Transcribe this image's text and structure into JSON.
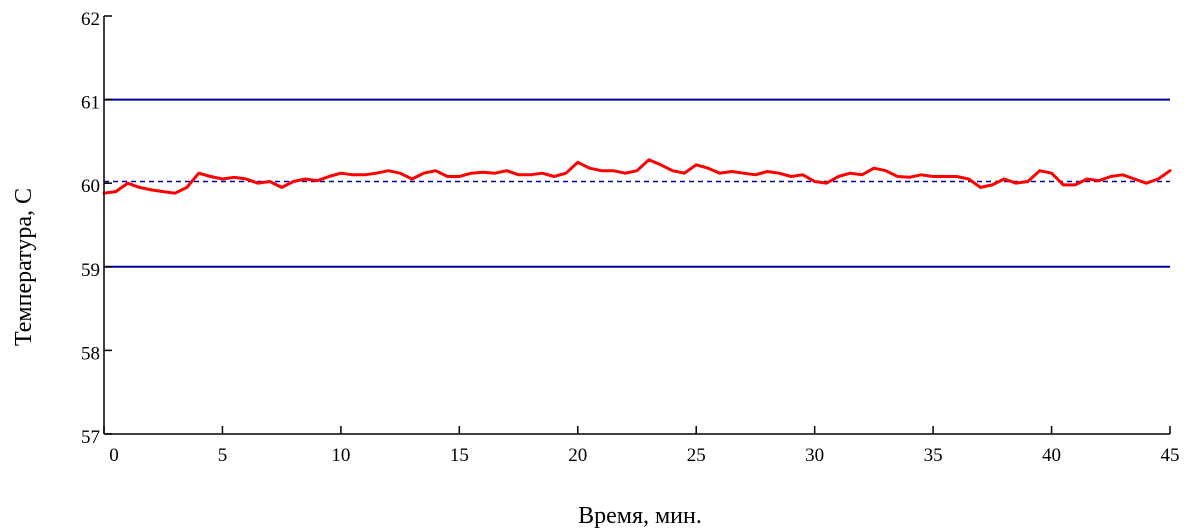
{
  "chart_data": {
    "type": "line",
    "xlabel": "Время, мин.",
    "ylabel": "Температура, С",
    "xlim": [
      0,
      45
    ],
    "ylim": [
      57,
      62
    ],
    "x_ticks": [
      0,
      5,
      10,
      15,
      20,
      25,
      30,
      35,
      40,
      45
    ],
    "y_ticks": [
      57,
      58,
      59,
      60,
      61,
      62
    ],
    "grid": false,
    "reference_lines": [
      {
        "y": 61,
        "style": "solid",
        "color": "#0000a0"
      },
      {
        "y": 59,
        "style": "solid",
        "color": "#0000a0"
      },
      {
        "y": 60.02,
        "style": "dashed",
        "color": "#0000a0"
      }
    ],
    "series": [
      {
        "color": "#ff0000",
        "x": [
          0,
          0.5,
          1,
          1.5,
          2,
          2.5,
          3,
          3.5,
          4,
          4.5,
          5,
          5.5,
          6,
          6.5,
          7,
          7.5,
          8,
          8.5,
          9,
          9.5,
          10,
          10.5,
          11,
          11.5,
          12,
          12.5,
          13,
          13.5,
          14,
          14.5,
          15,
          15.5,
          16,
          16.5,
          17,
          17.5,
          18,
          18.5,
          19,
          19.5,
          20,
          20.5,
          21,
          21.5,
          22,
          22.5,
          23,
          23.5,
          24,
          24.5,
          25,
          25.5,
          26,
          26.5,
          27,
          27.5,
          28,
          28.5,
          29,
          29.5,
          30,
          30.5,
          31,
          31.5,
          32,
          32.5,
          33,
          33.5,
          34,
          34.5,
          35,
          35.5,
          36,
          36.5,
          37,
          37.5,
          38,
          38.5,
          39,
          39.5,
          40,
          40.5,
          41,
          41.5,
          42,
          42.5,
          43,
          43.5,
          44,
          44.5,
          45
        ],
        "y": [
          59.88,
          59.9,
          60.0,
          59.95,
          59.92,
          59.9,
          59.88,
          59.95,
          60.12,
          60.08,
          60.05,
          60.07,
          60.05,
          60.0,
          60.02,
          59.95,
          60.02,
          60.05,
          60.03,
          60.08,
          60.12,
          60.1,
          60.1,
          60.12,
          60.15,
          60.12,
          60.05,
          60.12,
          60.15,
          60.08,
          60.08,
          60.12,
          60.13,
          60.12,
          60.15,
          60.1,
          60.1,
          60.12,
          60.08,
          60.12,
          60.25,
          60.18,
          60.15,
          60.15,
          60.12,
          60.15,
          60.28,
          60.22,
          60.15,
          60.12,
          60.22,
          60.18,
          60.12,
          60.14,
          60.12,
          60.1,
          60.14,
          60.12,
          60.08,
          60.1,
          60.02,
          60.0,
          60.08,
          60.12,
          60.1,
          60.18,
          60.15,
          60.08,
          60.07,
          60.1,
          60.08,
          60.08,
          60.08,
          60.05,
          59.95,
          59.98,
          60.05,
          60.0,
          60.02,
          60.15,
          60.12,
          59.98,
          59.98,
          60.05,
          60.03,
          60.08,
          60.1,
          60.05,
          60.0,
          60.05,
          60.15
        ]
      }
    ]
  }
}
